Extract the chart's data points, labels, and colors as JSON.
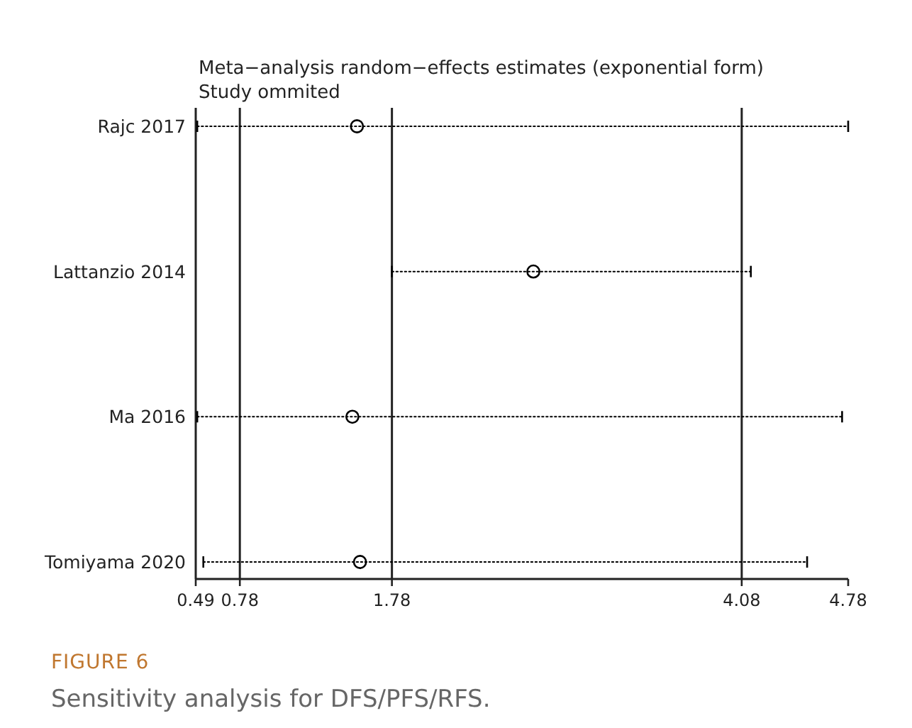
{
  "chart_data": {
    "type": "scatter",
    "orientation": "horizontal",
    "title": "Meta−analysis random−effects estimates (exponential form)",
    "subtitle": "Study ommited",
    "categories": [
      "Rajc 2017",
      "Lattanzio 2014",
      "Ma 2016",
      "Tomiyama 2020"
    ],
    "values": [
      1.55,
      2.71,
      1.52,
      1.57
    ],
    "errors": [
      [
        0.5,
        4.78
      ],
      [
        1.78,
        4.14
      ],
      [
        0.5,
        4.74
      ],
      [
        0.54,
        4.51
      ]
    ],
    "color": "#000000",
    "marker": "circle",
    "line_style": "dotted",
    "xlim": [
      0.49,
      4.78
    ],
    "xticks": [
      0.49,
      0.78,
      1.78,
      4.08,
      4.78
    ],
    "ref_lines": [
      {
        "axis": "x",
        "value": 0.78
      },
      {
        "axis": "x",
        "value": 1.78
      },
      {
        "axis": "x",
        "value": 4.08
      }
    ],
    "grid": false,
    "annotations": [
      "FIGURE 6",
      "Sensitivity analysis for DFS/PFS/RFS."
    ]
  }
}
